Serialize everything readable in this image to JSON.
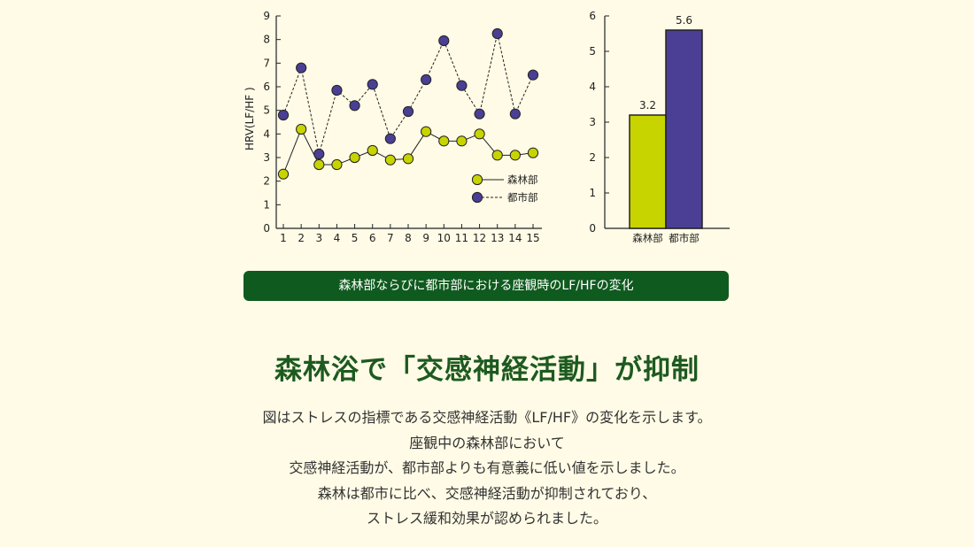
{
  "chart_data": [
    {
      "type": "line",
      "ylabel": "HRV(LF/HF )",
      "xlabel": "",
      "ylim": [
        0,
        9
      ],
      "yticks": [
        0,
        1,
        2,
        3,
        4,
        5,
        6,
        7,
        8,
        9
      ],
      "x": [
        1,
        2,
        3,
        4,
        5,
        6,
        7,
        8,
        9,
        10,
        11,
        12,
        13,
        14,
        15
      ],
      "legend_position": "bottom-right",
      "series": [
        {
          "name": "森林部",
          "color": "#c8d400",
          "line_style": "solid",
          "values": [
            2.3,
            4.2,
            2.7,
            2.7,
            3.0,
            3.3,
            2.9,
            2.95,
            4.1,
            3.7,
            3.7,
            4.0,
            3.1,
            3.1,
            3.2
          ]
        },
        {
          "name": "都市部",
          "color": "#4a3f94",
          "line_style": "dashed",
          "values": [
            4.8,
            6.8,
            3.15,
            5.85,
            5.2,
            6.1,
            3.8,
            4.95,
            6.3,
            7.95,
            6.05,
            4.85,
            8.25,
            4.85,
            6.5
          ]
        }
      ]
    },
    {
      "type": "bar",
      "ylim": [
        0,
        6
      ],
      "yticks": [
        0,
        1,
        2,
        3,
        4,
        5,
        6
      ],
      "categories": [
        "森林部",
        "都市部"
      ],
      "values": [
        3.2,
        5.6
      ],
      "value_labels": [
        "3.2",
        "5.6"
      ],
      "colors": [
        "#c8d400",
        "#4a3f94"
      ]
    }
  ],
  "caption": "森林部ならびに都市部における座観時のLF/HFの変化",
  "headline": "森林浴で「交感神経活動」が抑制",
  "body_lines": [
    "図はストレスの指標である交感神経活動《LF/HF》の変化を示します。",
    "座観中の森林部において",
    "交感神経活動が、都市部よりも有意義に低い値を示しました。",
    "森林は都市に比べ、交感神経活動が抑制されており、",
    "ストレス緩和効果が認められました。"
  ]
}
